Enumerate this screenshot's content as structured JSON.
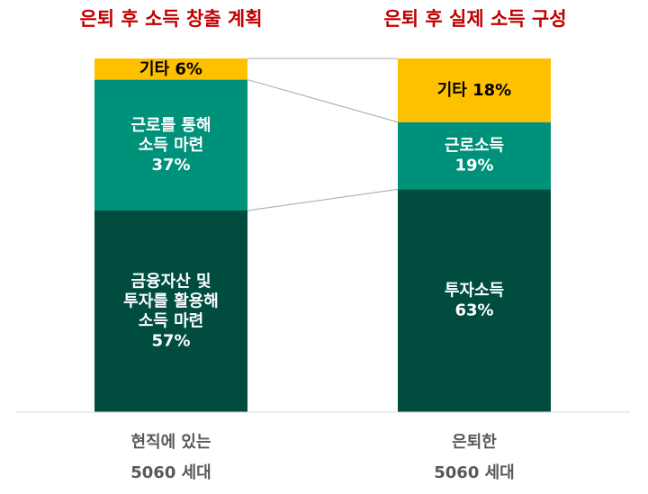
{
  "chart_data": {
    "type": "bar",
    "stacked": true,
    "unit": "%",
    "titles": [
      "은퇴 후 소득 창출 계획",
      "은퇴 후 실제 소득 구성"
    ],
    "categories": [
      [
        "현직에 있는",
        "5060 세대"
      ],
      [
        "은퇴한",
        "5060 세대"
      ]
    ],
    "bars": [
      {
        "segments": [
          {
            "lines": [
              "금융자산 및",
              "투자를 활용해",
              "소득 마련"
            ],
            "value": 57,
            "value_text": "57%",
            "color": "#004d40"
          },
          {
            "lines": [
              "근로를 통해",
              "소득 마련"
            ],
            "value": 37,
            "value_text": "37%",
            "color": "#00917a"
          },
          {
            "lines": [
              "기타"
            ],
            "value": 6,
            "value_text": "6%",
            "color": "#ffc000",
            "inline": true
          }
        ]
      },
      {
        "segments": [
          {
            "lines": [
              "투자소득"
            ],
            "value": 63,
            "value_text": "63%",
            "color": "#004d40"
          },
          {
            "lines": [
              "근로소득"
            ],
            "value": 19,
            "value_text": "19%",
            "color": "#00917a"
          },
          {
            "lines": [
              "기타"
            ],
            "value": 18,
            "value_text": "18%",
            "color": "#ffc000",
            "inline": true
          }
        ]
      }
    ],
    "ylim": [
      0,
      100
    ],
    "colors": {
      "title": "#c00000",
      "connector": "#a6a6a6",
      "axis": "#d9d9d9",
      "category_text": "#595959",
      "light_text": "#ffffff",
      "dark_text": "#000000"
    }
  }
}
